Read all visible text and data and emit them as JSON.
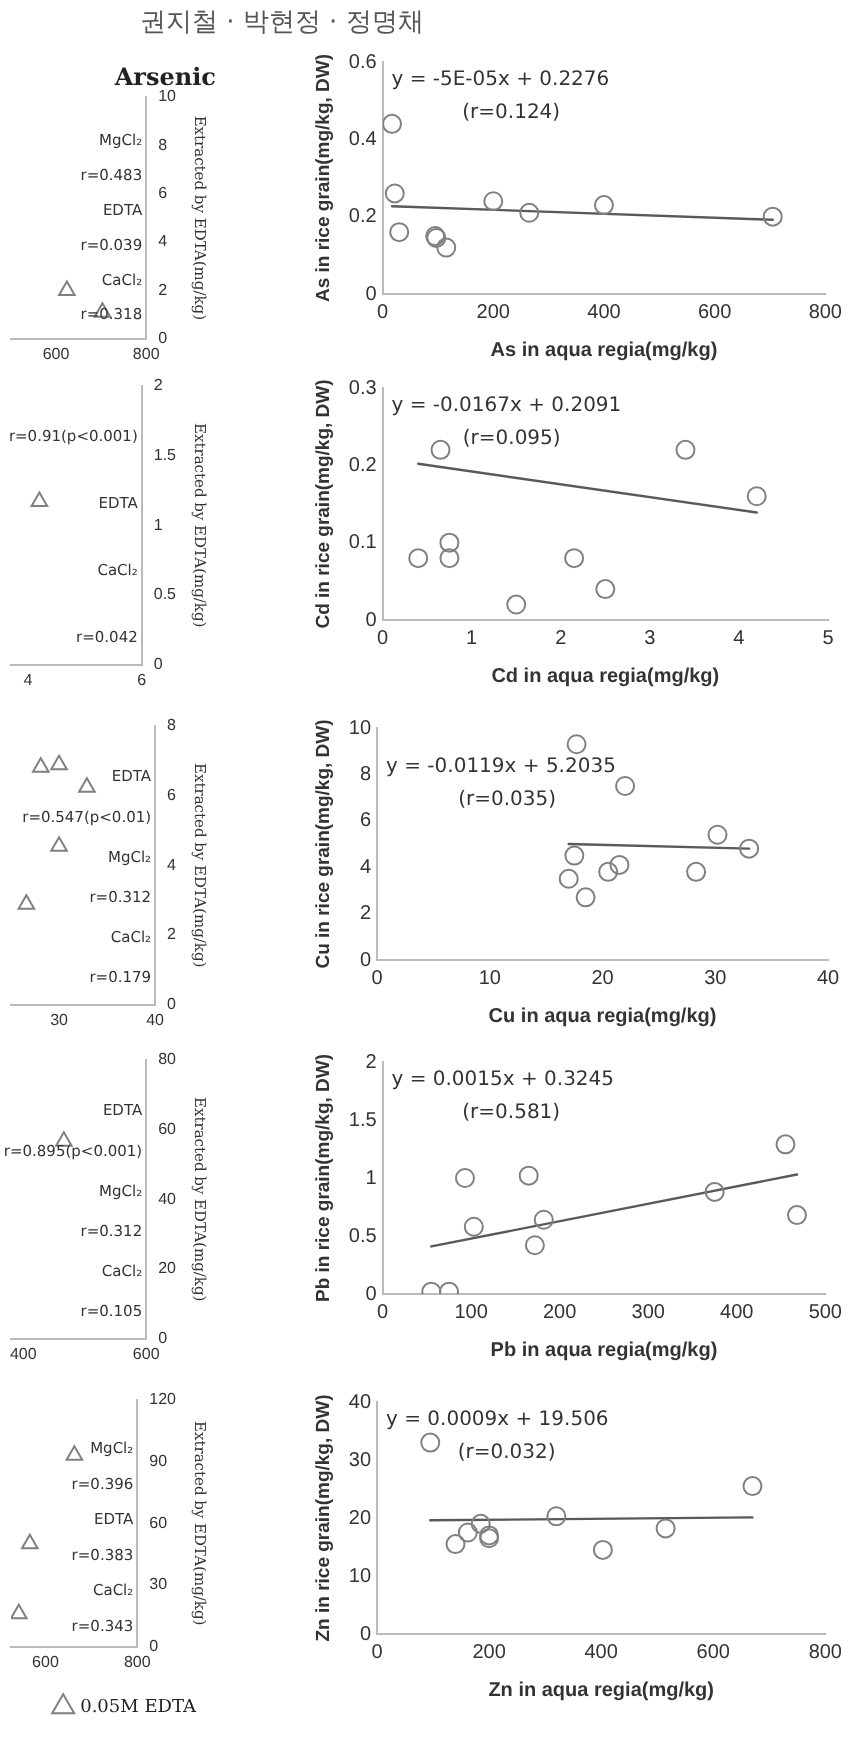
{
  "chart_data": [
    {
      "type": "scatter",
      "title": "Arsenic",
      "y2label": "Extracted by EDTA(mg/kg)",
      "annotations": [
        "권지철 · 박현정 · 정명채",
        "MgCl₂",
        "r=0.483",
        "EDTA",
        "r=0.039",
        "CaCl₂",
        "r=0.318"
      ],
      "xlim": [
        500,
        800
      ],
      "xticks": [
        600,
        800
      ],
      "y2lim": [
        0,
        10
      ],
      "y2ticks": [
        0,
        2,
        4,
        6,
        8,
        10
      ],
      "series": [
        {
          "type": "scatter",
          "axis": "y2",
          "marker": "triangle",
          "color": "#808080",
          "x": [
            624,
            703
          ],
          "values": [
            2.0,
            1.1
          ]
        }
      ]
    },
    {
      "type": "scatter",
      "xlabel": "As in aqua regia(mg/kg)",
      "ylabel": "As in rice grain(mg/kg, DW)",
      "annotations": [
        "y = -5E-05x + 0.2276",
        "(r=0.124)"
      ],
      "xlim": [
        0,
        800
      ],
      "xticks": [
        0,
        200,
        400,
        600,
        800
      ],
      "ylim": [
        0,
        0.6
      ],
      "yticks": [
        0,
        0.2,
        0.4,
        0.6
      ],
      "series": [
        {
          "type": "scatter",
          "marker": "circle",
          "color": "#808080",
          "x": [
            17,
            22,
            30,
            95,
            97,
            115,
            200,
            265,
            400,
            705
          ],
          "values": [
            0.44,
            0.26,
            0.16,
            0.15,
            0.145,
            0.12,
            0.24,
            0.21,
            0.23,
            0.2
          ]
        },
        {
          "type": "line",
          "marker": "none",
          "color": "#595959",
          "x": [
            17,
            705
          ],
          "values": [
            0.227,
            0.192
          ]
        }
      ]
    },
    {
      "type": "scatter",
      "y2label": "Extracted by EDTA(mg/kg)",
      "annotations": [
        "r=0.91(p<0.001)",
        "EDTA",
        "CaCl₂",
        "r=0.042"
      ],
      "xlim": [
        3.7,
        6
      ],
      "xticks": [
        4,
        6
      ],
      "y2lim": [
        0,
        2
      ],
      "y2ticks": [
        0,
        0.5,
        1,
        1.5,
        2
      ],
      "series": [
        {
          "type": "scatter",
          "axis": "y2",
          "marker": "triangle",
          "color": "#808080",
          "x": [
            4.2
          ],
          "values": [
            1.17
          ]
        }
      ]
    },
    {
      "type": "scatter",
      "xlabel": "Cd in aqua regia(mg/kg)",
      "ylabel": "Cd in rice grain(mg/kg, DW)",
      "annotations": [
        "y = -0.0167x + 0.2091",
        "(r=0.095)"
      ],
      "xlim": [
        0,
        5
      ],
      "xticks": [
        0,
        1,
        2,
        3,
        4,
        5
      ],
      "ylim": [
        0,
        0.3
      ],
      "yticks": [
        0,
        0.1,
        0.2,
        0.3
      ],
      "series": [
        {
          "type": "scatter",
          "marker": "circle",
          "color": "#808080",
          "x": [
            0.4,
            0.65,
            0.75,
            0.75,
            1.5,
            2.15,
            2.5,
            3.4,
            4.2
          ],
          "values": [
            0.08,
            0.22,
            0.1,
            0.08,
            0.02,
            0.08,
            0.04,
            0.22,
            0.16
          ]
        },
        {
          "type": "line",
          "marker": "none",
          "color": "#595959",
          "x": [
            0.4,
            4.2
          ],
          "values": [
            0.202,
            0.139
          ]
        }
      ]
    },
    {
      "type": "scatter",
      "y2label": "Extracted by EDTA(mg/kg)",
      "annotations": [
        "EDTA",
        "r=0.547(p<0.01)",
        "MgCl₂",
        "r=0.312",
        "CaCl₂",
        "r=0.179"
      ],
      "xlim": [
        25,
        40
      ],
      "xticks": [
        30,
        40
      ],
      "y2lim": [
        0,
        8
      ],
      "y2ticks": [
        0,
        2,
        4,
        6,
        8
      ],
      "series": [
        {
          "type": "scatter",
          "axis": "y2",
          "marker": "triangle",
          "color": "#808080",
          "x": [
            26.6,
            28.1,
            30,
            30,
            32.9
          ],
          "values": [
            2.88,
            6.81,
            6.88,
            4.54,
            6.23
          ]
        }
      ]
    },
    {
      "type": "scatter",
      "xlabel": "Cu in aqua regia(mg/kg)",
      "ylabel": "Cu in rice grain(mg/kg, DW)",
      "annotations": [
        "y = -0.0119x + 5.2035",
        "(r=0.035)"
      ],
      "xlim": [
        0,
        40
      ],
      "xticks": [
        0,
        10,
        20,
        30,
        40
      ],
      "ylim": [
        0,
        10
      ],
      "yticks": [
        0,
        2,
        4,
        6,
        8,
        10
      ],
      "series": [
        {
          "type": "scatter",
          "marker": "circle",
          "color": "#808080",
          "x": [
            17,
            17.5,
            17.7,
            18.5,
            20.5,
            21.5,
            22,
            28.3,
            30.2,
            33
          ],
          "values": [
            3.5,
            4.5,
            9.3,
            2.7,
            3.8,
            4.1,
            7.5,
            3.8,
            5.4,
            4.8
          ]
        },
        {
          "type": "line",
          "marker": "none",
          "color": "#595959",
          "x": [
            17,
            33
          ],
          "values": [
            5.0,
            4.8
          ]
        }
      ]
    },
    {
      "type": "scatter",
      "y2label": "Extracted by EDTA(mg/kg)",
      "annotations": [
        "EDTA",
        "r=0.895(p<0.001)",
        "MgCl₂",
        "r=0.312",
        "CaCl₂",
        "r=0.105"
      ],
      "xlim": [
        380,
        600
      ],
      "xticks": [
        400,
        600
      ],
      "y2lim": [
        0,
        80
      ],
      "y2ticks": [
        0,
        20,
        40,
        60,
        80
      ],
      "series": [
        {
          "type": "scatter",
          "axis": "y2",
          "marker": "triangle",
          "color": "#808080",
          "x": [
            466
          ],
          "values": [
            56.6
          ]
        }
      ]
    },
    {
      "type": "scatter",
      "xlabel": "Pb in aqua regia(mg/kg)",
      "ylabel": "Pb in rice grain(mg/kg, DW)",
      "annotations": [
        "y = 0.0015x + 0.3245",
        "(r=0.581)"
      ],
      "xlim": [
        0,
        500
      ],
      "xticks": [
        0,
        100,
        200,
        300,
        400,
        500
      ],
      "ylim": [
        0,
        2
      ],
      "yticks": [
        0,
        0.5,
        1,
        1.5,
        2
      ],
      "series": [
        {
          "type": "scatter",
          "marker": "circle",
          "color": "#808080",
          "x": [
            55,
            75,
            93,
            103,
            165,
            172,
            182,
            375,
            455,
            468
          ],
          "values": [
            0.02,
            0.02,
            1.0,
            0.58,
            1.02,
            0.42,
            0.64,
            0.88,
            1.29,
            0.68
          ]
        },
        {
          "type": "line",
          "marker": "none",
          "color": "#595959",
          "x": [
            55,
            468
          ],
          "values": [
            0.41,
            1.03
          ]
        }
      ]
    },
    {
      "type": "scatter",
      "y2label": "Extracted by EDTA(mg/kg)",
      "annotations": [
        "MgCl₂",
        "r=0.396",
        "EDTA",
        "r=0.383",
        "CaCl₂",
        "r=0.343"
      ],
      "xlim": [
        525,
        800
      ],
      "xticks": [
        600,
        800
      ],
      "y2lim": [
        0,
        120
      ],
      "y2ticks": [
        0,
        30,
        60,
        90,
        120
      ],
      "legend": "bottom",
      "series": [
        {
          "type": "scatter",
          "axis": "y2",
          "marker": "triangle",
          "name": "0.05M EDTA",
          "color": "#808080",
          "x": [
            542,
            566,
            663
          ],
          "values": [
            16,
            50,
            93
          ]
        }
      ]
    },
    {
      "type": "scatter",
      "xlabel": "Zn in aqua regia(mg/kg)",
      "ylabel": "Zn in rice grain(mg/kg, DW)",
      "annotations": [
        "y = 0.0009x + 19.506",
        "(r=0.032)"
      ],
      "xlim": [
        0,
        800
      ],
      "xticks": [
        0,
        200,
        400,
        600,
        800
      ],
      "ylim": [
        0,
        40
      ],
      "yticks": [
        0,
        10,
        20,
        30,
        40
      ],
      "series": [
        {
          "type": "scatter",
          "marker": "circle",
          "color": "#808080",
          "x": [
            95,
            140,
            162,
            185,
            200,
            200,
            320,
            403,
            515,
            670
          ],
          "values": [
            33,
            15.5,
            17.5,
            19,
            17,
            16.5,
            20.3,
            14.5,
            18.2,
            25.5
          ]
        },
        {
          "type": "line",
          "marker": "none",
          "color": "#595959",
          "x": [
            95,
            670
          ],
          "values": [
            19.6,
            20.1
          ]
        }
      ]
    }
  ]
}
